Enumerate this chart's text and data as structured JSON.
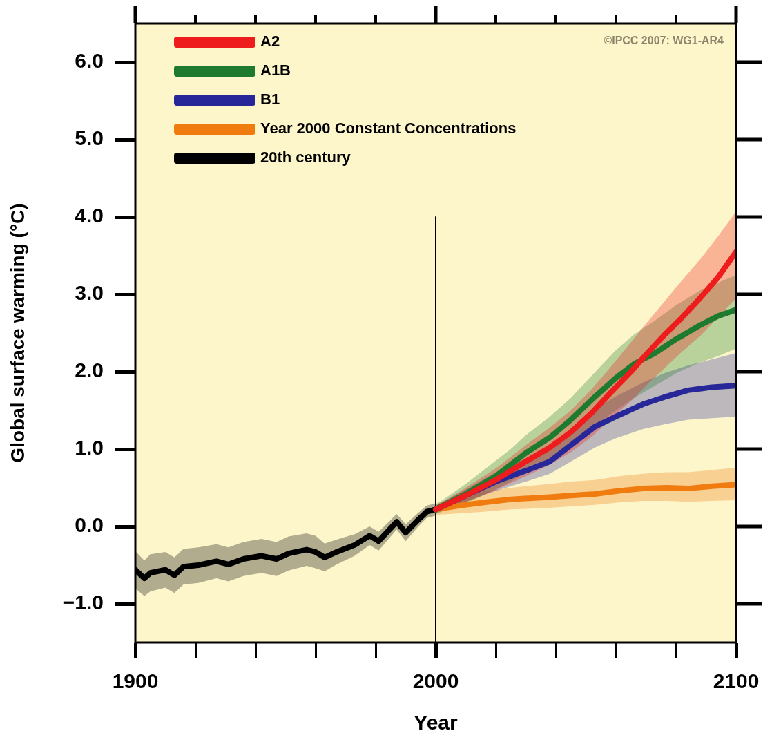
{
  "chart_data": {
    "type": "line",
    "xlabel": "Year",
    "ylabel": "Global surface warming (°C)",
    "xlim": [
      1900,
      2100
    ],
    "ylim": [
      -1.5,
      6.5
    ],
    "xticks": [
      1900,
      {
        "value": 1920,
        "label": null
      },
      {
        "value": 1940,
        "label": null
      },
      {
        "value": 1960,
        "label": null
      },
      {
        "value": 1980,
        "label": null
      },
      2000,
      {
        "value": 2020,
        "label": null
      },
      {
        "value": 2040,
        "label": null
      },
      {
        "value": 2060,
        "label": null
      },
      {
        "value": 2080,
        "label": null
      },
      2100
    ],
    "yticks": [
      {
        "value": -1,
        "label": "−1.0"
      },
      {
        "value": 0,
        "label": "0.0"
      },
      {
        "value": 1,
        "label": "1.0"
      },
      {
        "value": 2,
        "label": "2.0"
      },
      {
        "value": 3,
        "label": "3.0"
      },
      {
        "value": 4,
        "label": "4.0"
      },
      {
        "value": 5,
        "label": "5.0"
      },
      {
        "value": 6,
        "label": "6.0"
      }
    ],
    "grid": false,
    "legend": "top left",
    "marker": "none",
    "annotations": [
      "©IPCC 2007: WG1-AR4"
    ],
    "series": [
      {
        "name": "A2",
        "color": "#ee1c1c",
        "x": [
          2000,
          2010,
          2020,
          2025,
          2030,
          2038,
          2045,
          2052,
          2058,
          2065,
          2070,
          2076,
          2082,
          2088,
          2094,
          2100
        ],
        "values": [
          0.22,
          0.4,
          0.6,
          0.72,
          0.84,
          1.02,
          1.22,
          1.47,
          1.72,
          2.0,
          2.22,
          2.47,
          2.7,
          2.95,
          3.22,
          3.55
        ],
        "upper": [
          0.26,
          0.5,
          0.75,
          0.9,
          1.05,
          1.28,
          1.5,
          1.78,
          2.05,
          2.38,
          2.62,
          2.9,
          3.18,
          3.45,
          3.75,
          4.07
        ],
        "lower": [
          0.18,
          0.32,
          0.47,
          0.56,
          0.65,
          0.8,
          0.96,
          1.16,
          1.38,
          1.62,
          1.82,
          2.04,
          2.26,
          2.46,
          2.7,
          2.95
        ]
      },
      {
        "name": "A1B",
        "color": "#1e7a2e",
        "x": [
          2000,
          2010,
          2020,
          2025,
          2030,
          2038,
          2045,
          2052,
          2060,
          2066,
          2073,
          2080,
          2088,
          2094,
          2100
        ],
        "values": [
          0.22,
          0.42,
          0.65,
          0.8,
          0.95,
          1.15,
          1.38,
          1.64,
          1.92,
          2.1,
          2.24,
          2.42,
          2.6,
          2.72,
          2.8
        ],
        "upper": [
          0.28,
          0.55,
          0.85,
          1.0,
          1.18,
          1.42,
          1.66,
          1.95,
          2.28,
          2.48,
          2.66,
          2.86,
          3.05,
          3.15,
          3.25
        ],
        "lower": [
          0.16,
          0.3,
          0.48,
          0.58,
          0.7,
          0.88,
          1.06,
          1.28,
          1.5,
          1.66,
          1.82,
          1.98,
          2.12,
          2.2,
          2.3
        ]
      },
      {
        "name": "B1",
        "color": "#27279a",
        "x": [
          2000,
          2010,
          2020,
          2030,
          2038,
          2045,
          2053,
          2060,
          2069,
          2076,
          2084,
          2092,
          2100
        ],
        "values": [
          0.22,
          0.4,
          0.58,
          0.72,
          0.84,
          1.05,
          1.29,
          1.42,
          1.58,
          1.67,
          1.76,
          1.8,
          1.82
        ],
        "upper": [
          0.27,
          0.48,
          0.7,
          0.88,
          1.02,
          1.25,
          1.52,
          1.68,
          1.86,
          1.98,
          2.08,
          2.16,
          2.24
        ],
        "lower": [
          0.17,
          0.32,
          0.46,
          0.58,
          0.68,
          0.84,
          1.02,
          1.14,
          1.26,
          1.32,
          1.38,
          1.4,
          1.42
        ]
      },
      {
        "name": "Year 2000 Constant Concentrations",
        "color": "#f07c10",
        "x": [
          2000,
          2008,
          2016,
          2025,
          2038,
          2045,
          2053,
          2061,
          2069,
          2077,
          2084,
          2092,
          2100
        ],
        "values": [
          0.22,
          0.27,
          0.31,
          0.35,
          0.38,
          0.4,
          0.42,
          0.46,
          0.49,
          0.5,
          0.49,
          0.52,
          0.54
        ],
        "upper": [
          0.3,
          0.38,
          0.45,
          0.5,
          0.55,
          0.58,
          0.6,
          0.65,
          0.68,
          0.7,
          0.7,
          0.73,
          0.76
        ],
        "lower": [
          0.15,
          0.17,
          0.19,
          0.22,
          0.24,
          0.26,
          0.28,
          0.31,
          0.33,
          0.33,
          0.32,
          0.33,
          0.34
        ]
      },
      {
        "name": "20th century",
        "color": "#000000",
        "x": [
          1900,
          1903,
          1905,
          1910,
          1913,
          1916,
          1921,
          1927,
          1931,
          1936,
          1942,
          1947,
          1951,
          1957,
          1960,
          1963,
          1967,
          1973,
          1978,
          1981,
          1987,
          1990,
          1994,
          1997,
          2000
        ],
        "values": [
          -0.56,
          -0.67,
          -0.6,
          -0.56,
          -0.63,
          -0.52,
          -0.5,
          -0.45,
          -0.49,
          -0.42,
          -0.38,
          -0.42,
          -0.35,
          -0.3,
          -0.33,
          -0.4,
          -0.33,
          -0.24,
          -0.12,
          -0.19,
          0.06,
          -0.08,
          0.08,
          0.19,
          0.22
        ],
        "upper": [
          -0.32,
          -0.44,
          -0.36,
          -0.33,
          -0.4,
          -0.29,
          -0.27,
          -0.23,
          -0.27,
          -0.2,
          -0.16,
          -0.2,
          -0.13,
          -0.09,
          -0.12,
          -0.22,
          -0.17,
          -0.1,
          0.0,
          -0.07,
          0.16,
          0.03,
          0.17,
          0.27,
          0.3
        ],
        "lower": [
          -0.8,
          -0.9,
          -0.84,
          -0.79,
          -0.86,
          -0.75,
          -0.73,
          -0.67,
          -0.71,
          -0.64,
          -0.6,
          -0.64,
          -0.57,
          -0.51,
          -0.54,
          -0.58,
          -0.49,
          -0.38,
          -0.24,
          -0.31,
          -0.04,
          -0.19,
          -0.01,
          0.11,
          0.14
        ]
      },
      {
        "type": "line",
        "color": "#000000",
        "x": [
          2000,
          2000
        ],
        "values": [
          -1.5,
          4.0
        ]
      }
    ]
  }
}
